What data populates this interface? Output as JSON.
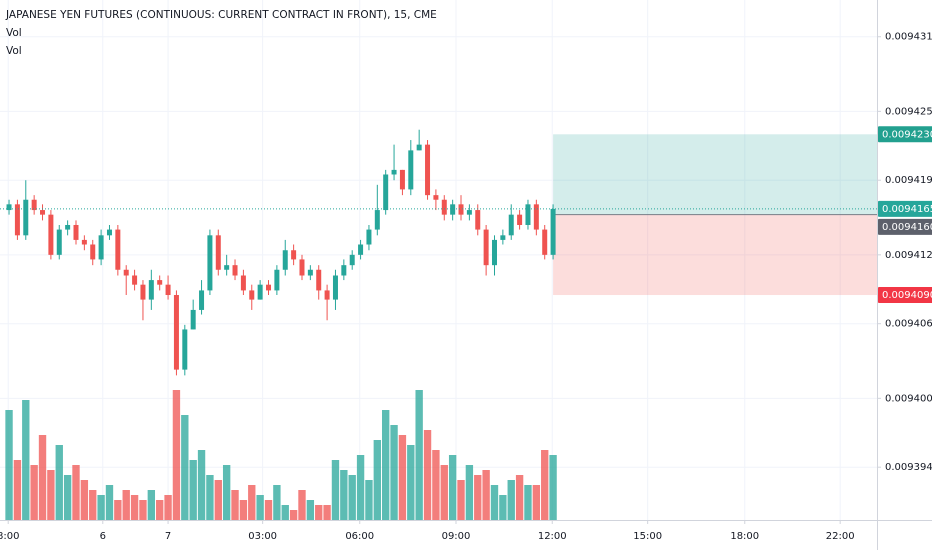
{
  "chart_data": {
    "type": "candlestick",
    "title": "JAPANESE YEN FUTURES (CONTINUOUS: CURRENT CONTRACT IN FRONT), 15, CME",
    "indicators": [
      "Vol",
      "Vol"
    ],
    "up_color": "#26a69a",
    "down_color": "#ef5350",
    "open": [
      0.0094164,
      0.0094169,
      0.0094142,
      0.0094173,
      0.0094164,
      0.009416,
      0.0094125,
      0.0094147,
      0.0094151,
      0.0094138,
      0.0094134,
      0.0094121,
      0.0094142,
      0.0094147,
      0.0094112,
      0.0094107,
      0.0094099,
      0.0094086,
      0.0094103,
      0.0094099,
      0.009409,
      0.0094025,
      0.009406,
      0.0094077,
      0.0094094,
      0.0094142,
      0.0094112,
      0.0094116,
      0.0094107,
      0.0094094,
      0.0094086,
      0.0094099,
      0.0094094,
      0.0094112,
      0.0094129,
      0.0094121,
      0.0094107,
      0.0094112,
      0.0094094,
      0.0094086,
      0.0094107,
      0.0094116,
      0.0094125,
      0.0094134,
      0.0094147,
      0.0094164,
      0.0094195,
      0.0094199,
      0.0094182,
      0.0094216,
      0.0094221,
      0.0094177,
      0.0094173,
      0.009416,
      0.0094169,
      0.009416,
      0.0094164,
      0.0094147,
      0.0094116,
      0.0094138,
      0.0094142,
      0.009416,
      0.0094151,
      0.0094169,
      0.0094147,
      0.0094125
    ],
    "high": [
      0.0094173,
      0.0094173,
      0.009419,
      0.0094177,
      0.0094169,
      0.0094164,
      0.0094151,
      0.0094155,
      0.0094155,
      0.0094142,
      0.0094138,
      0.0094147,
      0.0094151,
      0.0094151,
      0.0094116,
      0.0094112,
      0.0094103,
      0.0094112,
      0.0094107,
      0.0094107,
      0.0094094,
      0.0094064,
      0.0094086,
      0.0094103,
      0.0094147,
      0.0094147,
      0.0094125,
      0.0094121,
      0.0094112,
      0.0094099,
      0.0094103,
      0.0094103,
      0.0094116,
      0.0094138,
      0.0094134,
      0.0094125,
      0.0094116,
      0.0094116,
      0.0094099,
      0.0094112,
      0.0094121,
      0.0094129,
      0.0094138,
      0.0094151,
      0.0094186,
      0.0094199,
      0.0094221,
      0.0094199,
      0.0094225,
      0.0094234,
      0.0094225,
      0.0094182,
      0.0094177,
      0.0094173,
      0.0094177,
      0.0094169,
      0.0094169,
      0.0094151,
      0.0094142,
      0.0094147,
      0.0094169,
      0.0094164,
      0.0094173,
      0.0094173,
      0.0094151,
      0.0094169
    ],
    "low": [
      0.009416,
      0.0094138,
      0.0094138,
      0.009416,
      0.0094155,
      0.0094121,
      0.0094121,
      0.0094142,
      0.0094134,
      0.0094129,
      0.0094116,
      0.0094116,
      0.0094138,
      0.0094107,
      0.009409,
      0.0094094,
      0.0094068,
      0.0094077,
      0.0094094,
      0.0094086,
      0.009402,
      0.009402,
      0.009406,
      0.0094073,
      0.009409,
      0.0094107,
      0.0094107,
      0.0094103,
      0.009409,
      0.0094077,
      0.0094086,
      0.009409,
      0.009409,
      0.0094107,
      0.0094116,
      0.0094103,
      0.0094103,
      0.0094086,
      0.0094068,
      0.0094077,
      0.0094103,
      0.0094112,
      0.0094121,
      0.0094129,
      0.0094142,
      0.009416,
      0.009419,
      0.0094177,
      0.0094177,
      0.0094216,
      0.0094173,
      0.0094164,
      0.0094155,
      0.0094155,
      0.0094155,
      0.0094155,
      0.0094142,
      0.0094107,
      0.0094107,
      0.0094134,
      0.0094138,
      0.0094147,
      0.0094147,
      0.0094142,
      0.0094121,
      0.0094121
    ],
    "close": [
      0.0094169,
      0.0094142,
      0.0094173,
      0.0094164,
      0.009416,
      0.0094125,
      0.0094147,
      0.0094151,
      0.0094138,
      0.0094134,
      0.0094121,
      0.0094142,
      0.0094147,
      0.0094112,
      0.0094107,
      0.0094099,
      0.0094086,
      0.0094103,
      0.0094099,
      0.009409,
      0.0094025,
      0.009406,
      0.0094077,
      0.0094094,
      0.0094142,
      0.0094112,
      0.0094116,
      0.0094107,
      0.0094094,
      0.0094086,
      0.0094099,
      0.0094094,
      0.0094112,
      0.0094129,
      0.0094121,
      0.0094107,
      0.0094112,
      0.0094094,
      0.0094086,
      0.0094107,
      0.0094116,
      0.0094125,
      0.0094134,
      0.0094147,
      0.0094164,
      0.0094195,
      0.0094199,
      0.0094182,
      0.0094216,
      0.0094221,
      0.0094177,
      0.0094173,
      0.009416,
      0.0094169,
      0.009416,
      0.0094164,
      0.0094147,
      0.0094116,
      0.0094138,
      0.0094142,
      0.009416,
      0.0094151,
      0.0094169,
      0.0094147,
      0.0094125,
      0.0094165
    ],
    "volume": [
      110,
      60,
      120,
      55,
      85,
      50,
      75,
      45,
      55,
      40,
      30,
      25,
      35,
      20,
      30,
      25,
      20,
      30,
      20,
      25,
      130,
      105,
      60,
      70,
      45,
      40,
      55,
      30,
      20,
      35,
      25,
      20,
      35,
      15,
      10,
      30,
      20,
      15,
      15,
      60,
      50,
      45,
      65,
      40,
      80,
      110,
      95,
      85,
      75,
      130,
      90,
      70,
      55,
      65,
      40,
      55,
      45,
      50,
      35,
      25,
      40,
      45,
      35,
      35,
      70,
      65
    ],
    "xlim": [
      -1.08,
      103.7
    ],
    "xticks": [
      {
        "value": -0.1,
        "label": "8:00"
      },
      {
        "value": 11.2,
        "label": "6"
      },
      {
        "value": 19,
        "label": "7"
      },
      {
        "value": 30.3,
        "label": "03:00"
      },
      {
        "value": 41.9,
        "label": "06:00"
      },
      {
        "value": 53.4,
        "label": "09:00"
      },
      {
        "value": 64.9,
        "label": "12:00"
      },
      {
        "value": 76.3,
        "label": "15:00"
      },
      {
        "value": 87.9,
        "label": "18:00"
      },
      {
        "value": 99.3,
        "label": "22:00"
      }
    ],
    "ylim": [
      0.0093894,
      0.0094347
    ],
    "yticks": [
      0.0094315,
      {
        "value": 0.009425,
        "label": "0.0094250"
      },
      {
        "value": 0.009419,
        "label": "0.0094190"
      },
      0.0094125,
      0.0094065,
      {
        "value": 0.0094,
        "label": "0.0094000"
      },
      {
        "value": 0.009394,
        "label": "0.0093940"
      }
    ],
    "grid": true,
    "position": {
      "target": 0.009423,
      "entry": 0.009416,
      "stop": 0.009409
    },
    "price_tags": [
      {
        "value": 0.009423,
        "label": "0.0094230",
        "color": "#22a08f"
      },
      {
        "value": 0.0094165,
        "label": "0.0094165",
        "color": "#26a69a"
      },
      {
        "value": 0.009416,
        "label": "0.0094160",
        "color": "#5d606b"
      },
      {
        "value": 0.009409,
        "label": "0.0094090",
        "color": "#f23645"
      }
    ]
  }
}
